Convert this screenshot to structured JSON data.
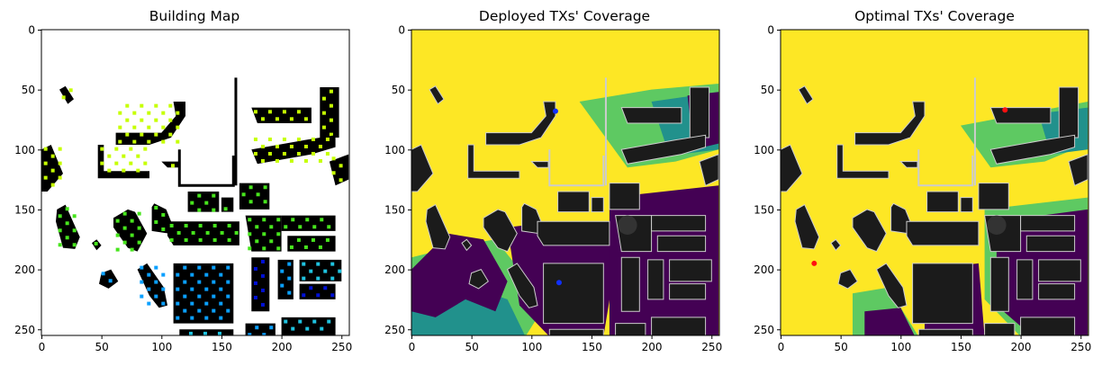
{
  "chart_data": [
    {
      "type": "heatmap",
      "title": "Building Map",
      "xlim": [
        0,
        255
      ],
      "ylim": [
        255,
        0
      ],
      "x_ticks": [
        "0",
        "50",
        "100",
        "150",
        "200",
        "250"
      ],
      "y_ticks": [
        "0",
        "50",
        "100",
        "150",
        "200",
        "250"
      ],
      "x_tick_values": [
        0,
        50,
        100,
        150,
        200,
        250
      ],
      "y_tick_values": [
        0,
        50,
        100,
        150,
        200,
        250
      ],
      "grid": false,
      "colors": {
        "background": "#ffffff",
        "building": "#000000",
        "mark_palette": [
          "#c6ff00",
          "#47e51d",
          "#1fc3e0",
          "#0aa0ff",
          "#0010d6"
        ]
      }
    },
    {
      "type": "heatmap",
      "title": "Deployed TXs' Coverage",
      "xlim": [
        0,
        255
      ],
      "ylim": [
        255,
        0
      ],
      "x_ticks": [
        "0",
        "50",
        "100",
        "150",
        "200",
        "250"
      ],
      "y_ticks": [
        "0",
        "50",
        "100",
        "150",
        "200",
        "250"
      ],
      "x_tick_values": [
        0,
        50,
        100,
        150,
        200,
        250
      ],
      "y_tick_values": [
        0,
        50,
        100,
        150,
        200,
        250
      ],
      "grid": false,
      "transmitters": [
        {
          "x": 120,
          "y": 68,
          "color": "#1030ff"
        },
        {
          "x": 123,
          "y": 211,
          "color": "#1030ff"
        }
      ],
      "colors": {
        "high": "#fde725",
        "mid_high": "#5ec962",
        "mid": "#21918c",
        "low": "#440154",
        "building": "#1b1b1b",
        "outline": "#cccccc"
      }
    },
    {
      "type": "heatmap",
      "title": "Optimal TXs' Coverage",
      "xlim": [
        0,
        255
      ],
      "ylim": [
        255,
        0
      ],
      "x_ticks": [
        "0",
        "50",
        "100",
        "150",
        "200",
        "250"
      ],
      "y_ticks": [
        "0",
        "50",
        "100",
        "150",
        "200",
        "250"
      ],
      "x_tick_values": [
        0,
        50,
        100,
        150,
        200,
        250
      ],
      "y_tick_values": [
        0,
        50,
        100,
        150,
        200,
        250
      ],
      "grid": false,
      "transmitters": [
        {
          "x": 187,
          "y": 67,
          "color": "#ff1010"
        },
        {
          "x": 28,
          "y": 195,
          "color": "#ff1010"
        }
      ],
      "colors": {
        "high": "#fde725",
        "mid_high": "#5ec962",
        "mid": "#21918c",
        "low": "#440154",
        "building": "#1b1b1b",
        "outline": "#cccccc"
      }
    }
  ]
}
